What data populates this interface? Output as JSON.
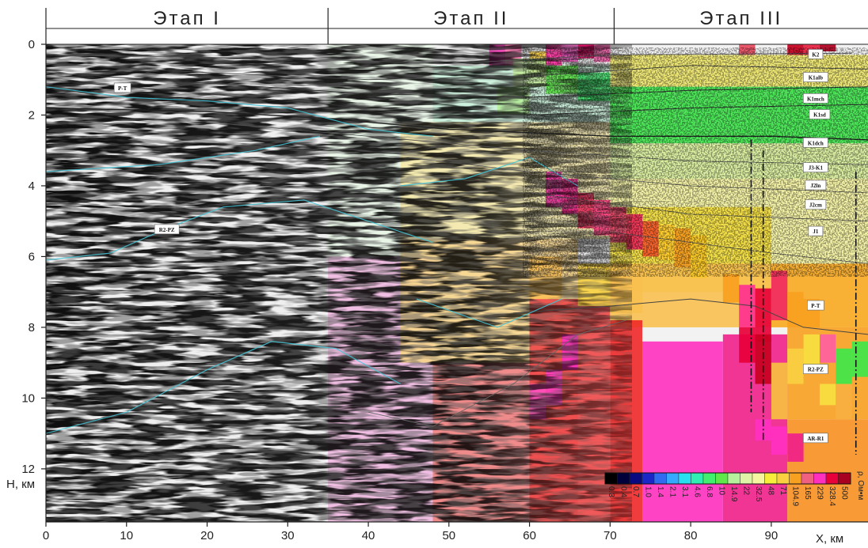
{
  "chart_data": {
    "type": "heatmap",
    "title": "",
    "xlabel": "X, км",
    "ylabel": "H, км",
    "xlim": [
      0,
      102
    ],
    "ylim": [
      0,
      13.5
    ],
    "y_inverted": true,
    "x_ticks": [
      "0",
      "10",
      "20",
      "30",
      "40",
      "50",
      "60",
      "70",
      "80",
      "90"
    ],
    "x_tick_values": [
      0,
      10,
      20,
      30,
      40,
      50,
      60,
      70,
      80,
      90
    ],
    "y_ticks": [
      "0",
      "2",
      "4",
      "6",
      "8",
      "10",
      "12"
    ],
    "y_tick_values": [
      0,
      2,
      4,
      6,
      8,
      10,
      12
    ],
    "stages": [
      {
        "label": "Этап I",
        "x_start": 0,
        "x_end": 35
      },
      {
        "label": "Этап II",
        "x_start": 35,
        "x_end": 70.5
      },
      {
        "label": "Этап III",
        "x_start": 70.5,
        "x_end": 102
      }
    ],
    "colorbar": {
      "unit": "ρ, Ом•м",
      "values": [
        "0.3",
        "0.4",
        "0.7",
        "1.0",
        "1.4",
        "2.1",
        "3.1",
        "4.6",
        "6.8",
        "10",
        "14.9",
        "22",
        "32.5",
        "48",
        "71",
        "104.9",
        "165",
        "229",
        "328.4",
        "500"
      ],
      "colors": [
        "#000000",
        "#00003a",
        "#0a0a80",
        "#1a28c8",
        "#2f6cf0",
        "#35a8ff",
        "#27e0f0",
        "#2ff0b2",
        "#42f070",
        "#5ee84a",
        "#b7f09d",
        "#e0f4a8",
        "#f6f6a0",
        "#f7ee3c",
        "#f8d040",
        "#f8a020",
        "#f06080",
        "#ff30c0",
        "#e8003a",
        "#a80020"
      ]
    },
    "layer_labels": [
      {
        "text": "K2",
        "x": 95.5,
        "y": 0.3
      },
      {
        "text": "K1alb",
        "x": 95.5,
        "y": 0.95
      },
      {
        "text": "K1mch",
        "x": 95.5,
        "y": 1.55
      },
      {
        "text": "K1sd",
        "x": 96,
        "y": 2.0
      },
      {
        "text": "K1dch",
        "x": 95.5,
        "y": 2.8
      },
      {
        "text": "J3-K1",
        "x": 95.5,
        "y": 3.5
      },
      {
        "text": "J2ln",
        "x": 95.5,
        "y": 4.0
      },
      {
        "text": "J2cm",
        "x": 95.5,
        "y": 4.55
      },
      {
        "text": "J1",
        "x": 95.5,
        "y": 5.3
      },
      {
        "text": "P-T",
        "x": 9.5,
        "y": 1.25
      },
      {
        "text": "P-T",
        "x": 95.5,
        "y": 7.4
      },
      {
        "text": "R2-PZ",
        "x": 15,
        "y": 5.25
      },
      {
        "text": "R2-PZ",
        "x": 95.5,
        "y": 9.2
      },
      {
        "text": "AR-R1",
        "x": 95.5,
        "y": 11.15
      }
    ]
  }
}
